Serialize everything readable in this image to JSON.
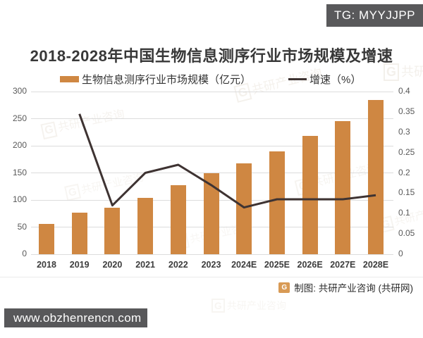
{
  "overlay": {
    "tg_badge": "TG: MYYJJPP",
    "footer_url": "www.obzhenrencn.com"
  },
  "title": "2018-2028年中国生物信息测序行业市场规模及增速",
  "legend": {
    "bar_label": "生物信息测序行业市场规模（亿元）",
    "line_label": "增速（%）"
  },
  "source": {
    "logo_letter": "G",
    "label": "制图: 共研产业咨询 (共研网)"
  },
  "watermark": {
    "logo_letter": "G",
    "text": "共研产业咨询"
  },
  "colors": {
    "bar": "#CF8742",
    "line": "#3E3332",
    "grid": "#DCDCDC",
    "axis_text": "#595959",
    "title_text": "#383838",
    "badge_bg": "#59595B",
    "footer_bg": "#58585A"
  },
  "chart_data": {
    "type": "combo",
    "title": "2018-2028年中国生物信息测序行业市场规模及增速",
    "categories": [
      "2018",
      "2019",
      "2020",
      "2021",
      "2022",
      "2023",
      "2024E",
      "2025E",
      "2026E",
      "2027E",
      "2028E"
    ],
    "series": [
      {
        "name": "生物信息测序行业市场规模（亿元）",
        "type": "bar",
        "axis": "left",
        "values": [
          56,
          76,
          86,
          104,
          127,
          150,
          168,
          190,
          218,
          246,
          284
        ]
      },
      {
        "name": "增速（%）",
        "type": "line",
        "axis": "right",
        "values": [
          null,
          0.345,
          0.12,
          0.2,
          0.22,
          0.17,
          0.115,
          0.135,
          0.135,
          0.135,
          0.145
        ]
      }
    ],
    "left_axis": {
      "min": 0,
      "max": 300,
      "step": 50,
      "tick_labels": [
        "300",
        "250",
        "200",
        "150",
        "100",
        "50",
        "0"
      ]
    },
    "right_axis": {
      "min": 0,
      "max": 0.4,
      "step": 0.05,
      "tick_labels": [
        "0.4",
        "0.35",
        "0.3",
        "0.25",
        "0.2",
        "0.15",
        "0.1",
        "0.05",
        "0"
      ]
    },
    "grid": true,
    "legend_position": "top"
  }
}
